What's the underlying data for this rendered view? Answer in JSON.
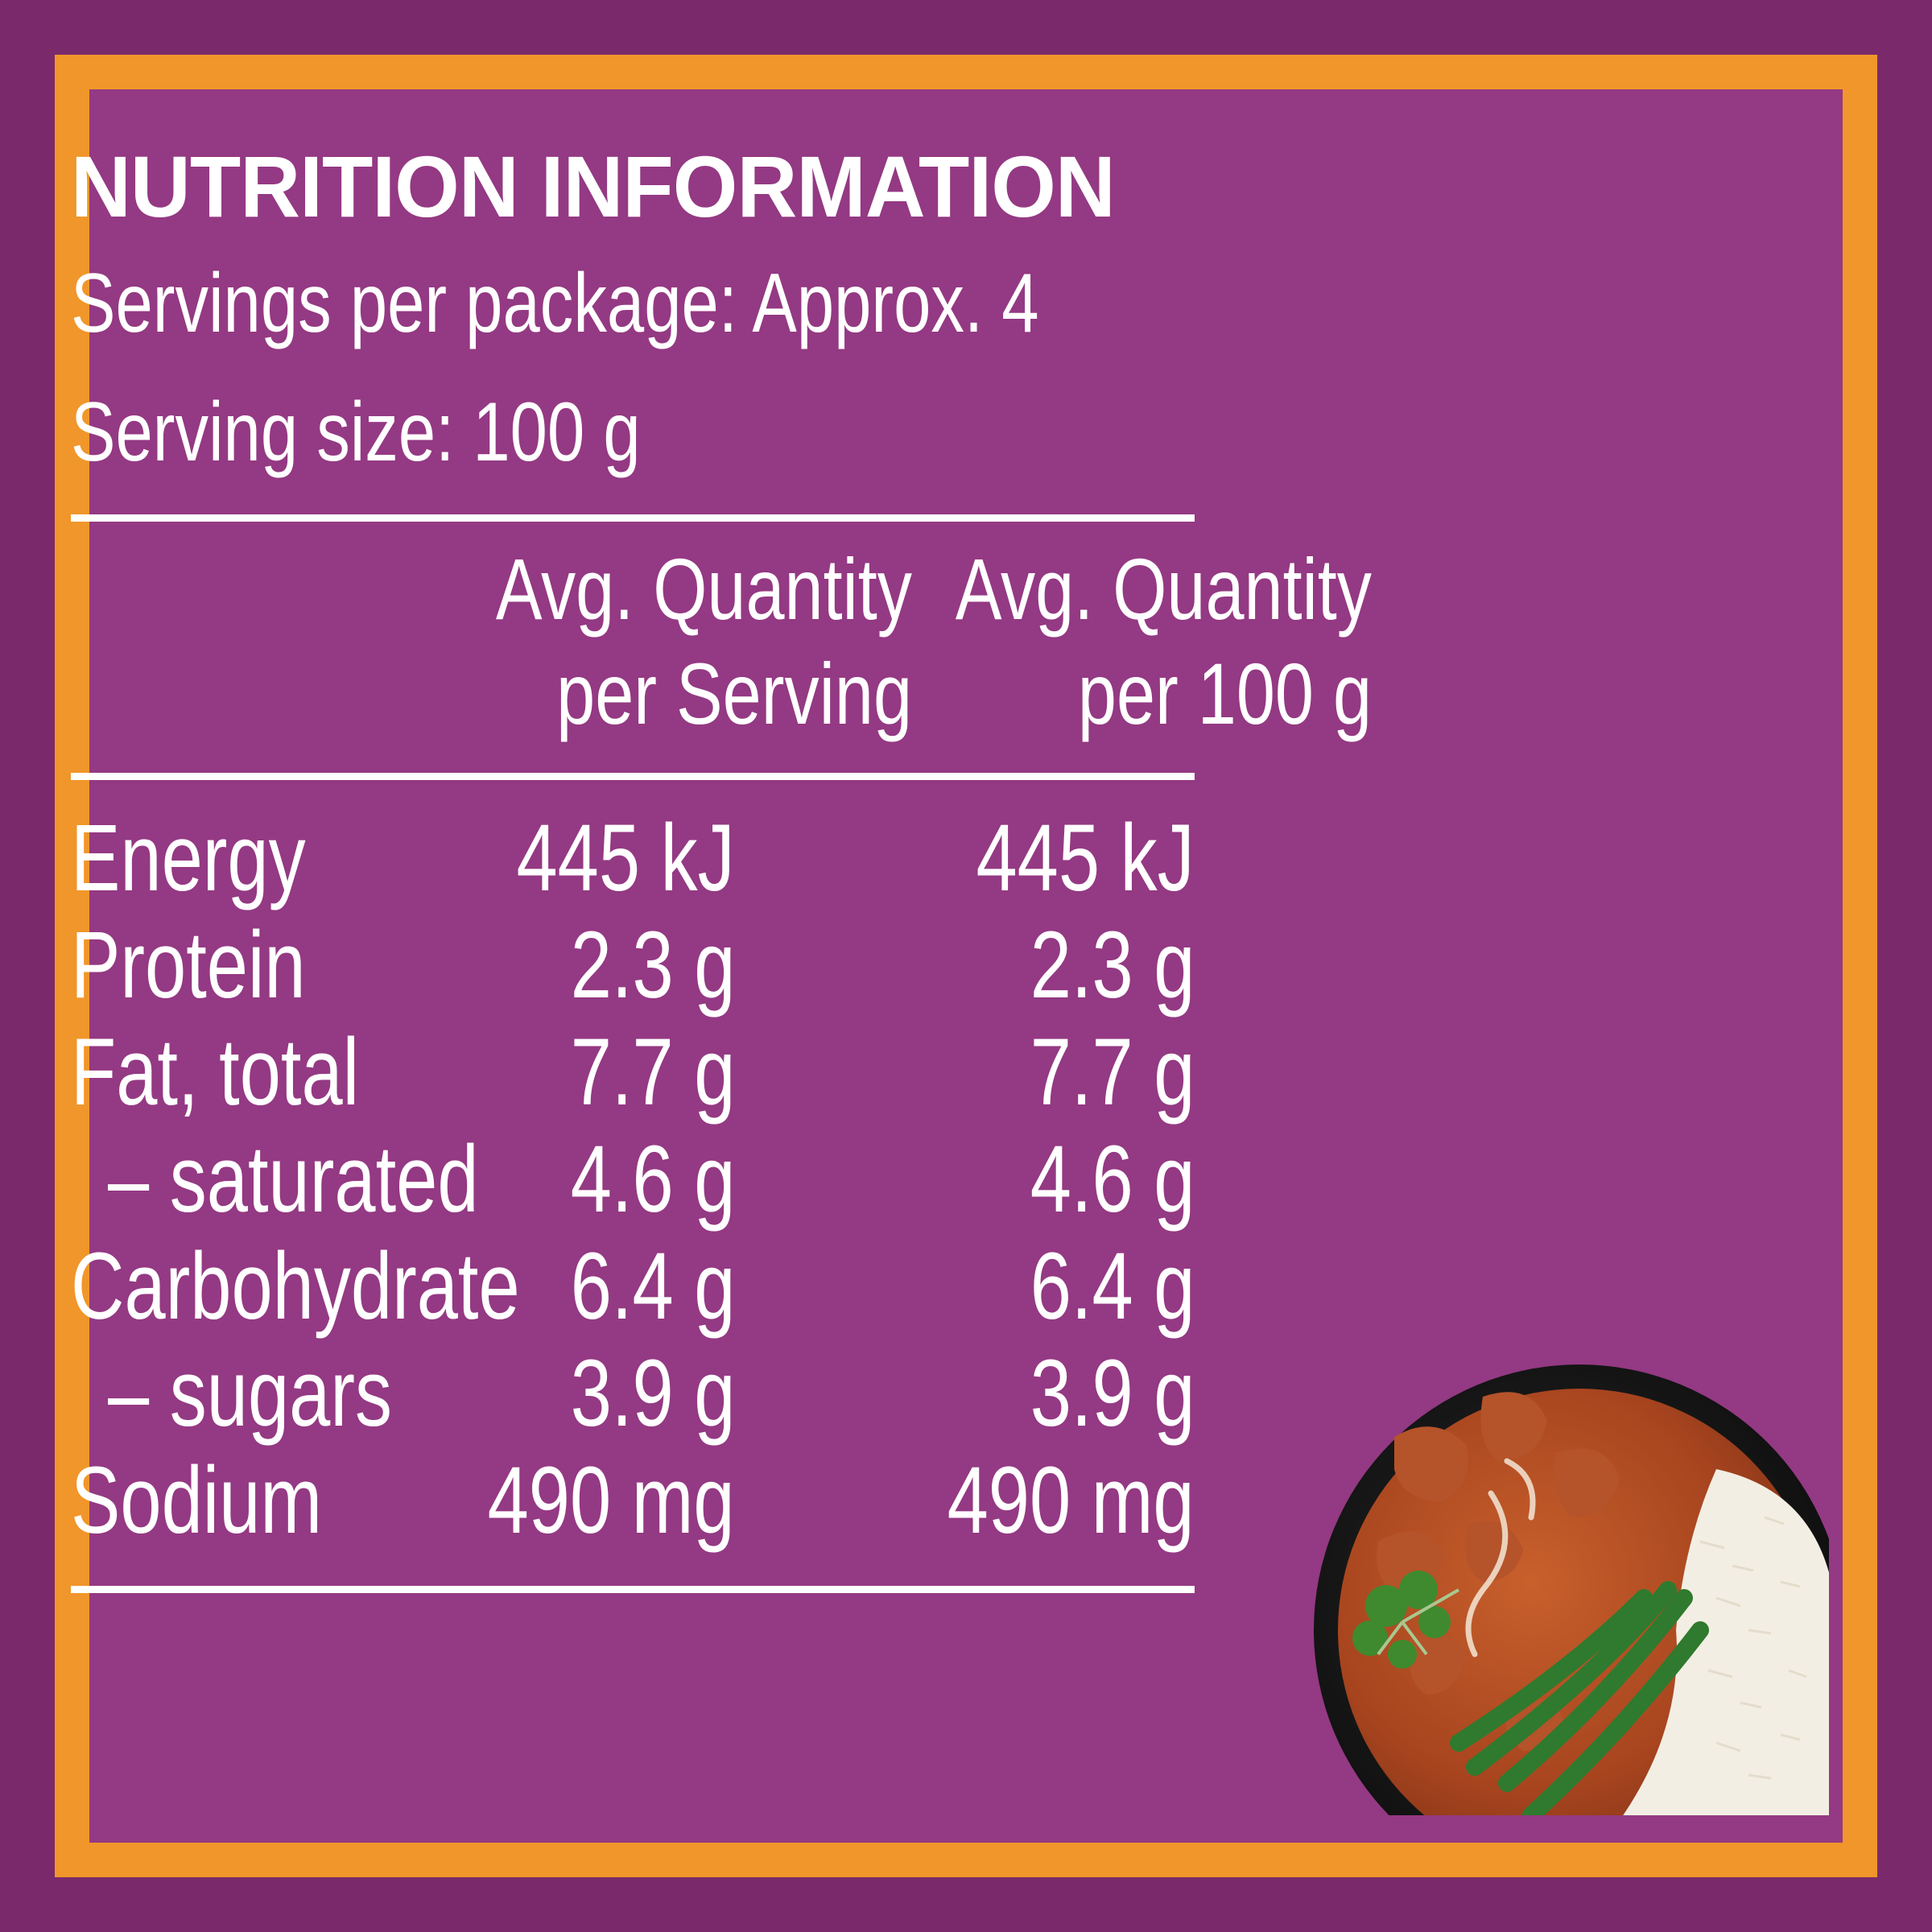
{
  "title": "NUTRITION INFORMATION",
  "servings_per_package": "Servings per package: Approx. 4",
  "serving_size": "Serving size: 100 g",
  "columns": {
    "per_serving_line1": "Avg. Quantity",
    "per_serving_line2": "per Serving",
    "per_100g_line1": "Avg. Quantity",
    "per_100g_line2": "per 100 g"
  },
  "rows": [
    {
      "label": "Energy",
      "per_serving": "445 kJ",
      "per_100g": "445 kJ"
    },
    {
      "label": "Protein",
      "per_serving": "2.3 g",
      "per_100g": "2.3 g"
    },
    {
      "label": "Fat, total",
      "per_serving": "7.7 g",
      "per_100g": "7.7 g"
    },
    {
      "label": "– saturated",
      "per_serving": "4.6 g",
      "per_100g": "4.6 g"
    },
    {
      "label": "Carbohydrate",
      "per_serving": "6.4 g",
      "per_100g": "6.4 g"
    },
    {
      "label": "– sugars",
      "per_serving": "3.9 g",
      "per_100g": "3.9 g"
    },
    {
      "label": "Sodium",
      "per_serving": "490 mg",
      "per_100g": "490 mg"
    }
  ],
  "colors": {
    "outer_border": "#7a2a6a",
    "frame": "#f0962a",
    "panel": "#943983",
    "text": "#ffffff"
  }
}
